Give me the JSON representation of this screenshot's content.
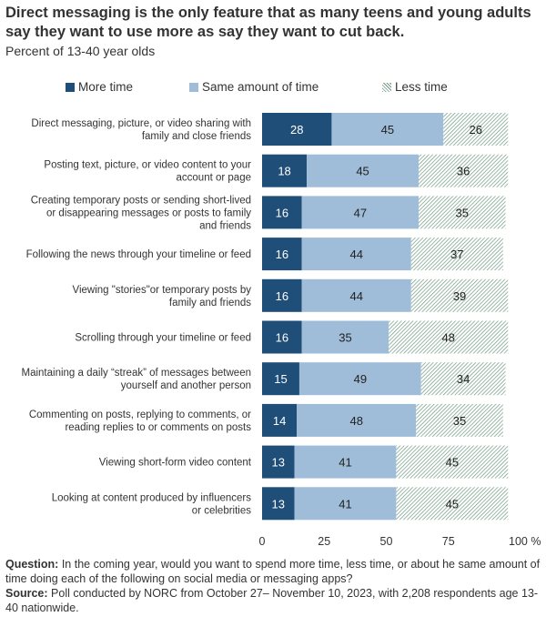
{
  "title": "Direct messaging is the only feature that as many teens and young adults say they want to use more as say they want to cut back.",
  "subtitle": "Percent of 13-40 year olds",
  "colors": {
    "more": "#1f4e79",
    "same": "#9fbcd8",
    "less": "#6e9a83"
  },
  "chart_data": {
    "type": "bar",
    "orientation": "horizontal",
    "stacked": true,
    "categories": [
      [
        "Direct messaging, picture, or video sharing with",
        "family and close friends"
      ],
      [
        "Posting text, picture, or video content to your",
        "account or page"
      ],
      [
        "Creating temporary posts or sending short-lived",
        "or disappearing messages or posts to family",
        "and friends"
      ],
      [
        "Following the news through your timeline or feed"
      ],
      [
        "Viewing \"stories\"or temporary posts by",
        "family and friends"
      ],
      [
        "Scrolling through your timeline or feed"
      ],
      [
        "Maintaining a daily “streak” of messages between",
        "yourself and another person"
      ],
      [
        "Commenting on posts, replying to comments, or",
        "reading replies to or comments on posts"
      ],
      [
        "Viewing short-form video content"
      ],
      [
        "Looking at content produced by influencers",
        "or celebrities"
      ]
    ],
    "series": [
      {
        "name": "More time",
        "values": [
          28,
          18,
          16,
          16,
          16,
          16,
          15,
          14,
          13,
          13
        ]
      },
      {
        "name": "Same amount of time",
        "values": [
          45,
          45,
          47,
          44,
          44,
          35,
          49,
          48,
          41,
          41
        ]
      },
      {
        "name": "Less time",
        "values": [
          26,
          36,
          35,
          37,
          39,
          48,
          34,
          35,
          45,
          45
        ]
      }
    ],
    "xlim": [
      0,
      100
    ],
    "xticks": [
      "0",
      "25",
      "50",
      "75",
      "100 %"
    ],
    "xtick_values": [
      0,
      25,
      50,
      75,
      100
    ],
    "legend_position": "top"
  },
  "footer": {
    "question_label": "Question:",
    "question_text": "In the coming year, would you want to spend more time, less time, or about he same amount of time doing each of the following on social media or messaging apps?",
    "source_label": "Source:",
    "source_text": "Poll conducted by NORC from October 27– November 10, 2023, with 2,208 respondents age 13-40 nationwide."
  }
}
